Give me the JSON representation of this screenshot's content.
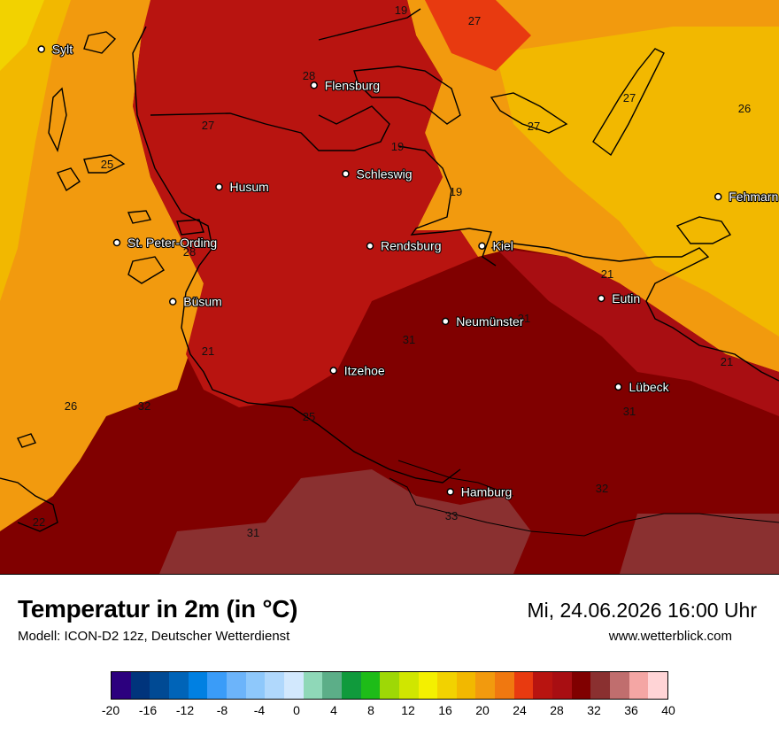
{
  "map": {
    "cities": [
      {
        "name": "Sylt",
        "lon": 8.32,
        "lat": 54.9
      },
      {
        "name": "Flensburg",
        "lon": 9.44,
        "lat": 54.79
      },
      {
        "name": "Schleswig",
        "lon": 9.57,
        "lat": 54.52
      },
      {
        "name": "Husum",
        "lon": 9.05,
        "lat": 54.48
      },
      {
        "name": "St. Peter-Ording",
        "lon": 8.63,
        "lat": 54.31
      },
      {
        "name": "Rendsburg",
        "lon": 9.67,
        "lat": 54.3
      },
      {
        "name": "Kiel",
        "lon": 10.13,
        "lat": 54.3
      },
      {
        "name": "Büsum",
        "lon": 8.86,
        "lat": 54.13
      },
      {
        "name": "Neumünster",
        "lon": 9.98,
        "lat": 54.07
      },
      {
        "name": "Eutin",
        "lon": 10.62,
        "lat": 54.14
      },
      {
        "name": "Itzehoe",
        "lon": 9.52,
        "lat": 53.92
      },
      {
        "name": "Lübeck",
        "lon": 10.69,
        "lat": 53.87
      },
      {
        "name": "Hamburg",
        "lon": 10.0,
        "lat": 53.55
      },
      {
        "name": "Fehmarn",
        "lon": 11.1,
        "lat": 54.45
      }
    ],
    "isotherm_labels": [
      "19",
      "27",
      "28",
      "27",
      "27",
      "26",
      "27",
      "19",
      "19",
      "25",
      "28",
      "21",
      "31",
      "31",
      "21",
      "21",
      "26",
      "32",
      "25",
      "31",
      "32",
      "33",
      "22",
      "31"
    ]
  },
  "footer": {
    "title": "Temperatur in 2m (in °C)",
    "model": "Modell: ICON-D2 12z, Deutscher Wetterdienst",
    "datetime": "Mi, 24.06.2026 16:00 Uhr",
    "website": "www.wetterblick.com"
  },
  "legend": {
    "colors": [
      "#2c007e",
      "#00347c",
      "#004a94",
      "#0064b8",
      "#0080e2",
      "#3a9cf8",
      "#6cb4fa",
      "#8ec8fb",
      "#b0d8fc",
      "#d2e8fd",
      "#8fd8b8",
      "#5cae88",
      "#109a3c",
      "#1ebc18",
      "#9ed806",
      "#d0e600",
      "#f4f000",
      "#f2d200",
      "#f2b800",
      "#f29a0e",
      "#f07810",
      "#e83a10",
      "#b81410",
      "#a80e12",
      "#800000",
      "#8a3030",
      "#c06e6e",
      "#f4a6a4",
      "#ffd4d6"
    ],
    "tick_labels": [
      "-20",
      "-16",
      "-12",
      "-8",
      "-4",
      "0",
      "4",
      "8",
      "12",
      "16",
      "20",
      "24",
      "28",
      "32",
      "36",
      "40"
    ]
  }
}
